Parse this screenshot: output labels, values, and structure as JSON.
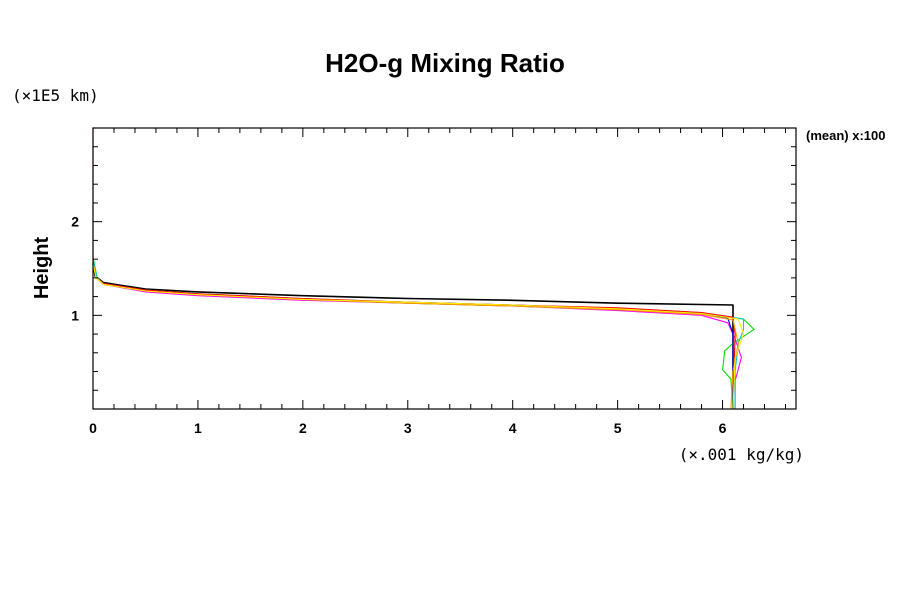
{
  "chart_data": {
    "type": "line",
    "title": "H2O-g Mixing Ratio",
    "xlabel": "(×.001 kg/kg)",
    "ylabel": "Height",
    "yunit": "(×1E5 km)",
    "side_label": "(mean) x:100",
    "xlim": [
      0,
      6.7
    ],
    "ylim": [
      0,
      3.0
    ],
    "xticks": [
      0,
      1,
      2,
      3,
      4,
      5,
      6
    ],
    "xtick_labels": [
      "0",
      "1",
      "2",
      "3",
      "4",
      "5",
      "6"
    ],
    "yticks": [
      1,
      2
    ],
    "ytick_labels": [
      "1",
      "2"
    ],
    "grid": false,
    "series": [
      {
        "color": "#000000",
        "points": [
          [
            0.0,
            1.55
          ],
          [
            0.02,
            1.42
          ],
          [
            0.1,
            1.35
          ],
          [
            0.5,
            1.28
          ],
          [
            1,
            1.25
          ],
          [
            2,
            1.21
          ],
          [
            3,
            1.18
          ],
          [
            4,
            1.16
          ],
          [
            5,
            1.13
          ],
          [
            6.1,
            1.11
          ],
          [
            6.1,
            0.85
          ],
          [
            6.1,
            0.0
          ]
        ]
      },
      {
        "color": "#ff00ff",
        "points": [
          [
            0.0,
            3.0
          ],
          [
            0.0,
            1.6
          ],
          [
            0.03,
            1.4
          ],
          [
            0.1,
            1.33
          ],
          [
            0.5,
            1.25
          ],
          [
            1,
            1.21
          ],
          [
            2,
            1.16
          ],
          [
            3,
            1.13
          ],
          [
            4,
            1.1
          ],
          [
            5,
            1.05
          ],
          [
            5.8,
            1.0
          ],
          [
            6.05,
            0.92
          ],
          [
            6.12,
            0.75
          ],
          [
            6.18,
            0.55
          ],
          [
            6.12,
            0.3
          ],
          [
            6.12,
            0.0
          ]
        ]
      },
      {
        "color": "#00dd00",
        "points": [
          [
            0.0,
            1.62
          ],
          [
            0.04,
            1.4
          ],
          [
            0.1,
            1.33
          ],
          [
            0.5,
            1.26
          ],
          [
            1,
            1.22
          ],
          [
            2,
            1.17
          ],
          [
            3,
            1.13
          ],
          [
            4,
            1.1
          ],
          [
            5,
            1.06
          ],
          [
            5.8,
            1.02
          ],
          [
            6.2,
            0.96
          ],
          [
            6.3,
            0.85
          ],
          [
            6.1,
            0.7
          ],
          [
            6.02,
            0.62
          ],
          [
            6.0,
            0.42
          ],
          [
            6.08,
            0.32
          ],
          [
            6.1,
            0.0
          ]
        ]
      },
      {
        "color": "#00cccc",
        "points": [
          [
            0.0,
            1.58
          ],
          [
            0.04,
            1.4
          ],
          [
            0.1,
            1.34
          ],
          [
            0.5,
            1.27
          ],
          [
            1,
            1.23
          ],
          [
            2,
            1.18
          ],
          [
            3,
            1.14
          ],
          [
            4,
            1.11
          ],
          [
            5,
            1.07
          ],
          [
            5.8,
            1.03
          ],
          [
            6.2,
            0.96
          ],
          [
            6.2,
            0.85
          ],
          [
            6.15,
            0.7
          ],
          [
            6.12,
            0.4
          ],
          [
            6.12,
            0.0
          ]
        ]
      },
      {
        "color": "#0000ff",
        "points": [
          [
            0.0,
            1.57
          ],
          [
            0.03,
            1.4
          ],
          [
            0.1,
            1.33
          ],
          [
            0.5,
            1.26
          ],
          [
            1,
            1.22
          ],
          [
            2,
            1.17
          ],
          [
            3,
            1.14
          ],
          [
            4,
            1.11
          ],
          [
            5,
            1.07
          ],
          [
            5.8,
            1.02
          ],
          [
            6.05,
            0.97
          ],
          [
            6.1,
            0.8
          ],
          [
            6.1,
            0.0
          ]
        ]
      },
      {
        "color": "#ff0000",
        "points": [
          [
            0.0,
            1.56
          ],
          [
            0.03,
            1.4
          ],
          [
            0.1,
            1.34
          ],
          [
            0.5,
            1.27
          ],
          [
            1,
            1.23
          ],
          [
            2,
            1.18
          ],
          [
            3,
            1.14
          ],
          [
            4,
            1.11
          ],
          [
            5,
            1.08
          ],
          [
            5.8,
            1.03
          ],
          [
            6.1,
            0.98
          ],
          [
            6.12,
            0.8
          ],
          [
            6.1,
            0.0
          ]
        ]
      },
      {
        "color": "#ff9900",
        "points": [
          [
            0.0,
            1.55
          ],
          [
            0.03,
            1.4
          ],
          [
            0.1,
            1.33
          ],
          [
            0.5,
            1.26
          ],
          [
            1,
            1.22
          ],
          [
            2,
            1.17
          ],
          [
            3,
            1.13
          ],
          [
            4,
            1.1
          ],
          [
            5,
            1.06
          ],
          [
            5.8,
            1.01
          ],
          [
            6.1,
            0.95
          ],
          [
            6.15,
            0.7
          ],
          [
            6.1,
            0.4
          ],
          [
            6.08,
            0.0
          ]
        ]
      },
      {
        "color": "#ffee00",
        "points": [
          [
            0.0,
            1.56
          ],
          [
            0.03,
            1.4
          ],
          [
            0.1,
            1.33
          ],
          [
            0.5,
            1.26
          ],
          [
            1,
            1.22
          ],
          [
            2,
            1.17
          ],
          [
            3,
            1.14
          ],
          [
            4,
            1.11
          ],
          [
            5,
            1.07
          ],
          [
            5.8,
            1.02
          ],
          [
            6.15,
            0.96
          ],
          [
            6.2,
            0.8
          ],
          [
            6.12,
            0.55
          ],
          [
            6.1,
            0.0
          ]
        ]
      }
    ]
  }
}
